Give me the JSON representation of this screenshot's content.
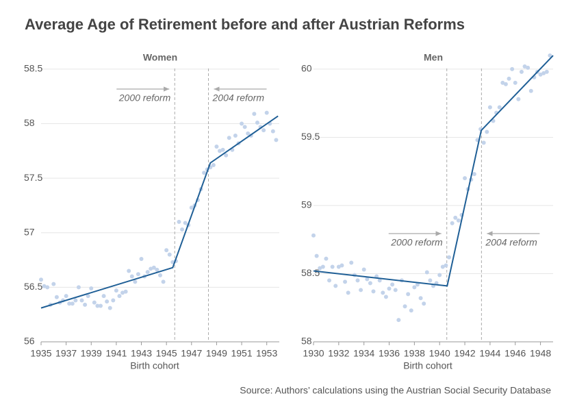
{
  "title": "Average Age of Retirement before and after Austrian Reforms",
  "source": "Source: Authors’ calculations using the Austrian Social Security Database",
  "chart_data": [
    {
      "type": "scatter",
      "title": "Women",
      "x_label": "Birth cohort",
      "xlim": [
        1935,
        1954
      ],
      "xticks": [
        1935,
        1937,
        1939,
        1941,
        1943,
        1945,
        1947,
        1949,
        1951,
        1953
      ],
      "ylim": [
        56,
        58.6
      ],
      "yticks": [
        56,
        56.5,
        57,
        57.5,
        58,
        58.5
      ],
      "grid": true,
      "series": [
        {
          "style": "points",
          "color": "#c3d3ea",
          "x": [
            1935,
            1935.25,
            1935.5,
            1935.75,
            1936,
            1936.25,
            1936.5,
            1936.75,
            1937,
            1937.25,
            1937.5,
            1937.75,
            1938,
            1938.25,
            1938.5,
            1938.75,
            1939,
            1939.25,
            1939.5,
            1939.75,
            1940,
            1940.25,
            1940.5,
            1940.75,
            1941,
            1941.25,
            1941.5,
            1941.75,
            1942,
            1942.25,
            1942.5,
            1942.75,
            1943,
            1943.25,
            1943.5,
            1943.75,
            1944,
            1944.25,
            1944.5,
            1944.75,
            1945,
            1945.25,
            1945.5,
            1945.75,
            1946,
            1946.25,
            1946.5,
            1946.75,
            1947,
            1947.25,
            1947.5,
            1947.75,
            1948,
            1948.25,
            1948.5,
            1948.75,
            1949,
            1949.25,
            1949.5,
            1949.75,
            1950,
            1950.25,
            1950.5,
            1950.75,
            1951,
            1951.25,
            1951.5,
            1951.75,
            1952,
            1952.25,
            1952.5,
            1952.75,
            1953,
            1953.25,
            1953.5,
            1953.75
          ],
          "values": [
            56.57,
            56.51,
            56.5,
            56.34,
            56.53,
            56.41,
            56.36,
            56.38,
            56.42,
            56.35,
            56.35,
            56.38,
            56.5,
            56.38,
            56.34,
            56.42,
            56.49,
            56.36,
            56.33,
            56.33,
            56.42,
            56.37,
            56.31,
            56.38,
            56.47,
            56.42,
            56.45,
            56.46,
            56.65,
            56.6,
            56.55,
            56.62,
            56.76,
            56.6,
            56.64,
            56.67,
            56.68,
            56.66,
            56.61,
            56.55,
            56.84,
            56.8,
            56.73,
            56.74,
            57.1,
            57.03,
            57.09,
            57.07,
            57.23,
            57.25,
            57.3,
            57.4,
            57.55,
            57.58,
            57.6,
            57.62,
            57.79,
            57.75,
            57.76,
            57.71,
            57.87,
            57.76,
            57.89,
            57.82,
            58,
            57.97,
            57.91,
            57.89,
            58.09,
            58.01,
            57.97,
            57.94,
            58.1,
            58,
            57.93,
            57.85
          ]
        },
        {
          "style": "line",
          "color": "#1f5f96",
          "x": [
            1935,
            1945.5,
            1948.5,
            1953.9
          ],
          "values": [
            56.31,
            56.68,
            57.64,
            58.07
          ]
        }
      ],
      "annotations": [
        {
          "text": "2000 reform",
          "x": 1945.66
        },
        {
          "text": "2004 reform",
          "x": 1948.35
        }
      ]
    },
    {
      "type": "scatter",
      "title": "Men",
      "x_label": "Birth cohort",
      "xlim": [
        1930,
        1949
      ],
      "xticks": [
        1930,
        1932,
        1934,
        1936,
        1938,
        1940,
        1942,
        1944,
        1946,
        1948
      ],
      "ylim": [
        58,
        60.08
      ],
      "yticks": [
        58,
        58.5,
        59,
        59.5,
        60
      ],
      "grid": true,
      "series": [
        {
          "style": "points",
          "color": "#c3d3ea",
          "x": [
            1930,
            1930.25,
            1930.5,
            1930.75,
            1931,
            1931.25,
            1931.5,
            1931.75,
            1932,
            1932.25,
            1932.5,
            1932.75,
            1933,
            1933.25,
            1933.5,
            1933.75,
            1934,
            1934.25,
            1934.5,
            1934.75,
            1935,
            1935.25,
            1935.5,
            1935.75,
            1936,
            1936.25,
            1936.5,
            1936.75,
            1937,
            1937.25,
            1937.5,
            1937.75,
            1938,
            1938.25,
            1938.5,
            1938.75,
            1939,
            1939.25,
            1939.5,
            1939.75,
            1940,
            1940.25,
            1940.5,
            1940.75,
            1941,
            1941.25,
            1941.5,
            1941.75,
            1942,
            1942.25,
            1942.5,
            1942.75,
            1943,
            1943.25,
            1943.5,
            1943.75,
            1944,
            1944.25,
            1944.5,
            1944.75,
            1945,
            1945.25,
            1945.5,
            1945.75,
            1946,
            1946.25,
            1946.5,
            1946.75,
            1947,
            1947.25,
            1947.5,
            1947.75,
            1948,
            1948.25,
            1948.5,
            1948.75
          ],
          "values": [
            58.78,
            58.63,
            58.54,
            58.55,
            58.61,
            58.45,
            58.55,
            58.41,
            58.55,
            58.56,
            58.44,
            58.36,
            58.58,
            58.49,
            58.45,
            58.38,
            58.53,
            58.46,
            58.43,
            58.37,
            58.48,
            58.45,
            58.36,
            58.33,
            58.39,
            58.42,
            58.38,
            58.16,
            58.45,
            58.26,
            58.35,
            58.23,
            58.4,
            58.42,
            58.32,
            58.28,
            58.51,
            58.45,
            58.41,
            58.43,
            58.49,
            58.55,
            58.56,
            58.62,
            58.87,
            58.91,
            58.89,
            58.93,
            59.2,
            59.12,
            59.19,
            59.23,
            59.48,
            59.56,
            59.46,
            59.54,
            59.72,
            59.62,
            59.68,
            59.72,
            59.9,
            59.89,
            59.93,
            60,
            59.9,
            59.78,
            59.98,
            60.02,
            60.01,
            59.84,
            59.94,
            59.98,
            59.96,
            59.97,
            59.98,
            60.1
          ]
        },
        {
          "style": "line",
          "color": "#1f5f96",
          "x": [
            1930,
            1940.6,
            1943.3,
            1949
          ],
          "values": [
            58.52,
            58.41,
            59.55,
            60.1
          ]
        }
      ],
      "annotations": [
        {
          "text": "2000 reform",
          "x": 1940.57
        },
        {
          "text": "2004 reform",
          "x": 1943.32
        }
      ]
    }
  ]
}
